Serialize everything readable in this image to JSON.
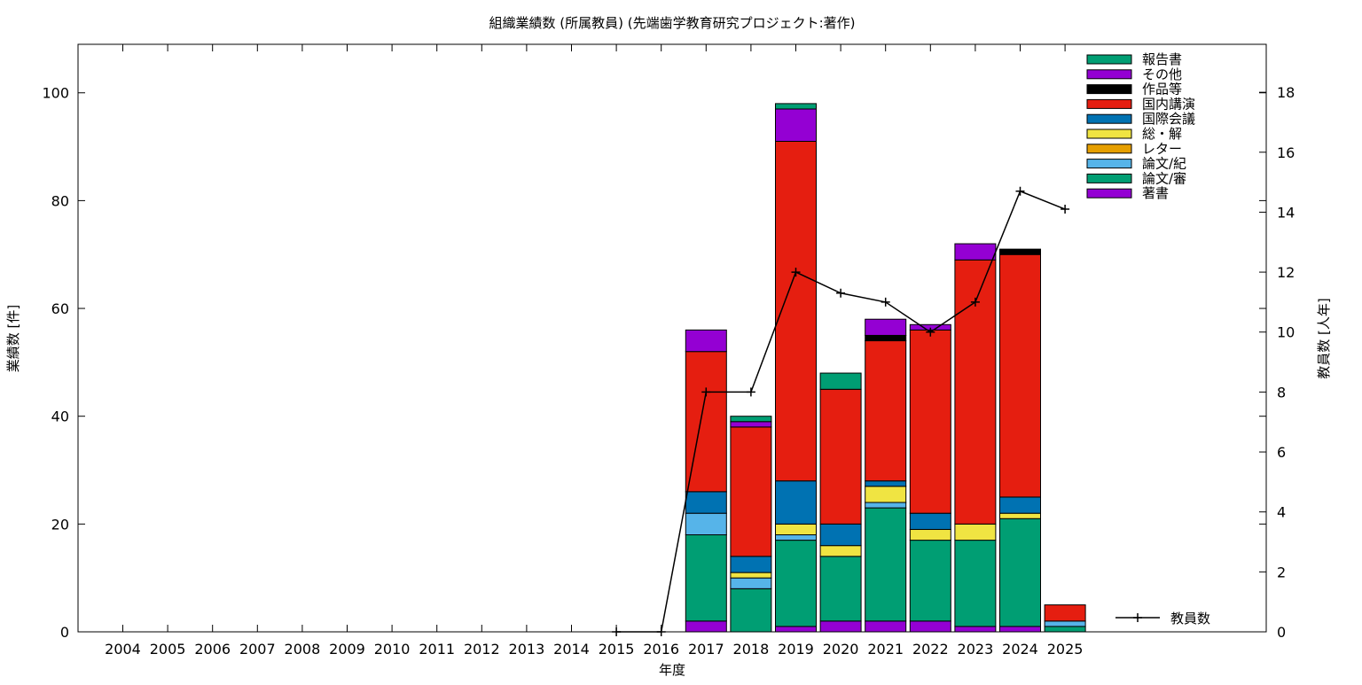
{
  "chart_data": {
    "type": "bar",
    "stacked": true,
    "title": "組織業績数 (所属教員) (先端歯学教育研究プロジェクト:著作)",
    "xlabel": "年度",
    "ylabel": "業績数 [件]",
    "y2label": "教員数 [人年]",
    "ylim": [
      0,
      109
    ],
    "y2lim": [
      0,
      19.6
    ],
    "yticks": [
      0,
      20,
      40,
      60,
      80,
      100
    ],
    "y2ticks": [
      0,
      2,
      4,
      6,
      8,
      10,
      12,
      14,
      16,
      18
    ],
    "grid": false,
    "legend_position": "top-right",
    "categories": [
      "2004",
      "2005",
      "2006",
      "2007",
      "2008",
      "2009",
      "2010",
      "2011",
      "2012",
      "2013",
      "2014",
      "2015",
      "2016",
      "2017",
      "2018",
      "2019",
      "2020",
      "2021",
      "2022",
      "2023",
      "2024",
      "2025"
    ],
    "series": [
      {
        "name": "著書",
        "color": "#9400D3",
        "values": [
          0,
          0,
          0,
          0,
          0,
          0,
          0,
          0,
          0,
          0,
          0,
          0,
          0,
          2,
          0,
          1,
          2,
          2,
          2,
          1,
          1,
          0
        ]
      },
      {
        "name": "論文/審",
        "color": "#009E73",
        "values": [
          0,
          0,
          0,
          0,
          0,
          0,
          0,
          0,
          0,
          0,
          0,
          0,
          0,
          16,
          8,
          16,
          12,
          21,
          15,
          16,
          20,
          1
        ]
      },
      {
        "name": "論文/紀",
        "color": "#56B4E9",
        "values": [
          0,
          0,
          0,
          0,
          0,
          0,
          0,
          0,
          0,
          0,
          0,
          0,
          0,
          4,
          2,
          1,
          0,
          1,
          0,
          0,
          0,
          1
        ]
      },
      {
        "name": "レター",
        "color": "#E69F00",
        "values": [
          0,
          0,
          0,
          0,
          0,
          0,
          0,
          0,
          0,
          0,
          0,
          0,
          0,
          0,
          0,
          0,
          0,
          0,
          0,
          0,
          0,
          0
        ]
      },
      {
        "name": "総・解",
        "color": "#F0E442",
        "values": [
          0,
          0,
          0,
          0,
          0,
          0,
          0,
          0,
          0,
          0,
          0,
          0,
          0,
          0,
          1,
          2,
          2,
          3,
          2,
          3,
          1,
          0
        ]
      },
      {
        "name": "国際会議",
        "color": "#0072B2",
        "values": [
          0,
          0,
          0,
          0,
          0,
          0,
          0,
          0,
          0,
          0,
          0,
          0,
          0,
          4,
          3,
          8,
          4,
          1,
          3,
          0,
          3,
          0
        ]
      },
      {
        "name": "国内講演",
        "color": "#E51E10",
        "values": [
          0,
          0,
          0,
          0,
          0,
          0,
          0,
          0,
          0,
          0,
          0,
          0,
          0,
          26,
          24,
          63,
          25,
          26,
          34,
          49,
          45,
          3
        ]
      },
      {
        "name": "作品等",
        "color": "#000000",
        "values": [
          0,
          0,
          0,
          0,
          0,
          0,
          0,
          0,
          0,
          0,
          0,
          0,
          0,
          0,
          0,
          0,
          0,
          1,
          0,
          0,
          1,
          0
        ]
      },
      {
        "name": "その他",
        "color": "#9400D3",
        "values": [
          0,
          0,
          0,
          0,
          0,
          0,
          0,
          0,
          0,
          0,
          0,
          0,
          0,
          4,
          1,
          6,
          0,
          3,
          1,
          3,
          0,
          0
        ]
      },
      {
        "name": "報告書",
        "color": "#009E73",
        "values": [
          0,
          0,
          0,
          0,
          0,
          0,
          0,
          0,
          0,
          0,
          0,
          0,
          0,
          0,
          1,
          1,
          3,
          0,
          0,
          0,
          0,
          0
        ]
      }
    ],
    "line_series": {
      "name": "教員数",
      "color": "#000000",
      "axis": "right",
      "x": [
        "2015",
        "2016",
        "2017",
        "2018",
        "2019",
        "2020",
        "2021",
        "2022",
        "2023",
        "2024",
        "2025"
      ],
      "values": [
        0,
        0,
        8,
        8,
        12,
        11.3,
        11,
        10,
        11,
        14.7,
        14.1
      ]
    }
  }
}
